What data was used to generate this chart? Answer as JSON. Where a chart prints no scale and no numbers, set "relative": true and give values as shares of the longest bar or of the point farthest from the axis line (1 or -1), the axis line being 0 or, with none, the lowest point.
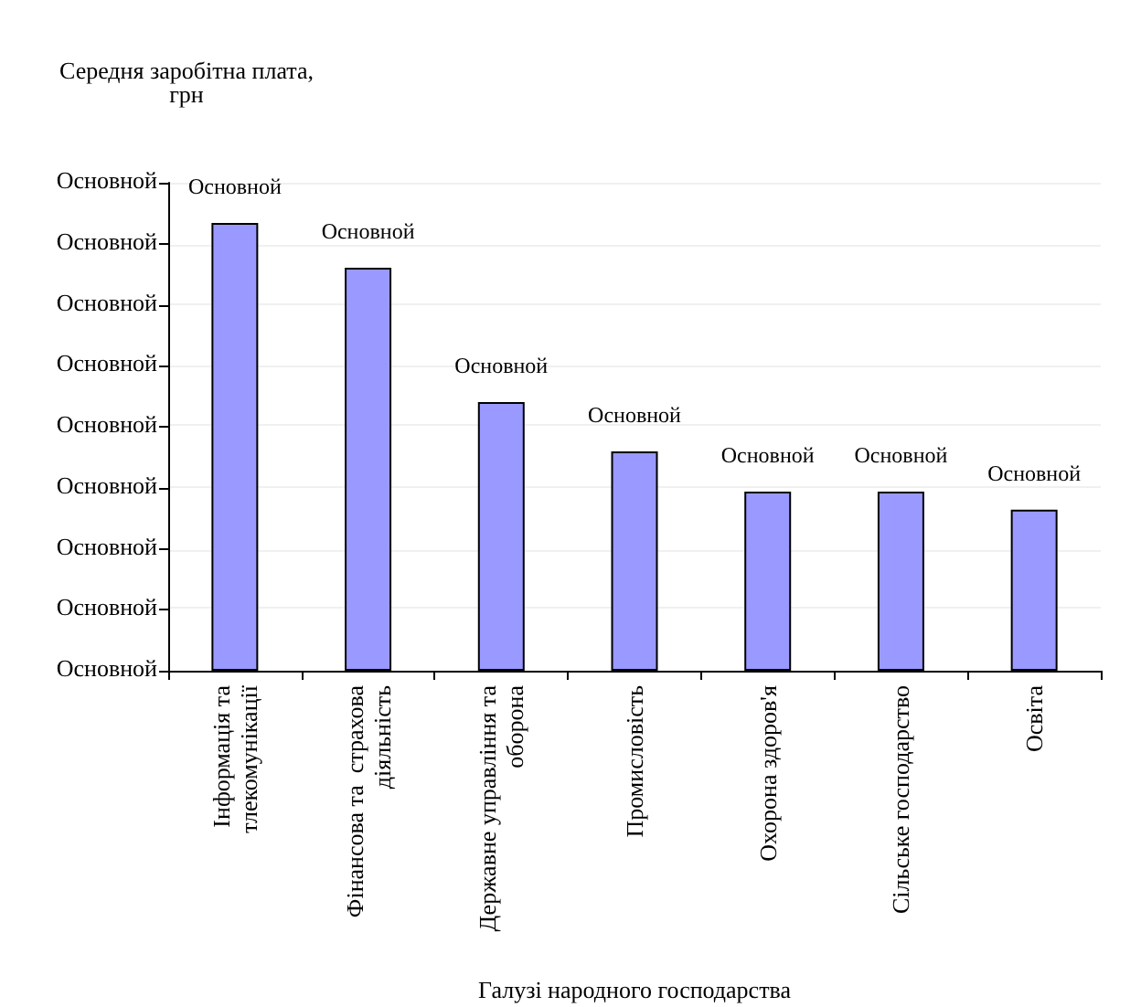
{
  "chart_data": {
    "type": "bar",
    "relative": true,
    "ylabel": "Середня заробітна плата,\nгрн",
    "xlabel": "Галузі народного господарства",
    "categories": [
      "Інформація та\nтлекомунікації",
      "Фінансова та  страхова\nдіяльність",
      "Державне управління та\nоборона",
      "Промисловість",
      "Охорона здоров'я",
      "Сільське господарство",
      "Освіта"
    ],
    "values": [
      1,
      0.9,
      0.6,
      0.49,
      0.4,
      0.4,
      0.36
    ],
    "color": "#9999ff",
    "annotations": [
      "Основной",
      "Основной",
      "Основной",
      "Основной",
      "Основной",
      "Основной",
      "Основной",
      "Основной",
      "Основной",
      {
        "text": "Основной",
        "x": "Інформація та\nтлекомунікації",
        "y": 1
      },
      {
        "text": "Основной",
        "x": "Фінансова та  страхова\nдіяльність",
        "y": 0.9
      },
      {
        "text": "Основной",
        "x": "Державне управління та\nоборона",
        "y": 0.6
      },
      {
        "text": "Основной",
        "x": "Промисловість",
        "y": 0.49
      },
      {
        "text": "Основной",
        "x": "Охорона здоров'я",
        "y": 0.4
      },
      {
        "text": "Основной",
        "x": "Сільське господарство",
        "y": 0.4
      },
      {
        "text": "Основной",
        "x": "Освіта",
        "y": 0.36
      }
    ],
    "grid": "y"
  }
}
